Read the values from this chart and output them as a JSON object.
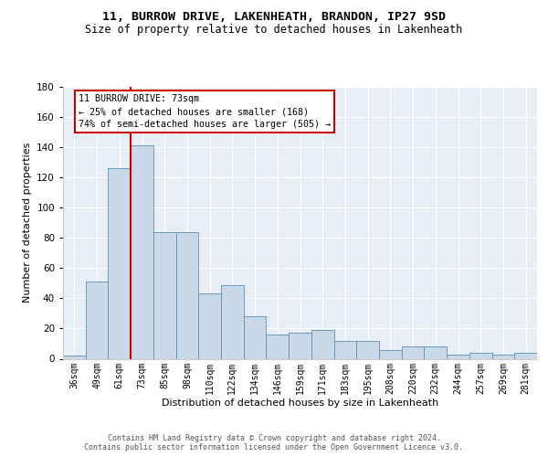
{
  "title1": "11, BURROW DRIVE, LAKENHEATH, BRANDON, IP27 9SD",
  "title2": "Size of property relative to detached houses in Lakenheath",
  "xlabel": "Distribution of detached houses by size in Lakenheath",
  "ylabel": "Number of detached properties",
  "categories": [
    "36sqm",
    "49sqm",
    "61sqm",
    "73sqm",
    "85sqm",
    "98sqm",
    "110sqm",
    "122sqm",
    "134sqm",
    "146sqm",
    "159sqm",
    "171sqm",
    "183sqm",
    "195sqm",
    "208sqm",
    "220sqm",
    "232sqm",
    "244sqm",
    "257sqm",
    "269sqm",
    "281sqm"
  ],
  "values": [
    2,
    51,
    126,
    141,
    84,
    84,
    43,
    49,
    28,
    16,
    17,
    19,
    12,
    12,
    6,
    8,
    8,
    3,
    4,
    3,
    4
  ],
  "bar_color": "#c9d9e8",
  "bar_edge_color": "#5b8db8",
  "vline_color": "#cc0000",
  "vline_index": 3,
  "ylim": [
    0,
    180
  ],
  "yticks": [
    0,
    20,
    40,
    60,
    80,
    100,
    120,
    140,
    160,
    180
  ],
  "annotation_line1": "11 BURROW DRIVE: 73sqm",
  "annotation_line2": "← 25% of detached houses are smaller (168)",
  "annotation_line3": "74% of semi-detached houses are larger (505) →",
  "ann_box_edge": "#cc0000",
  "footer1": "Contains HM Land Registry data © Crown copyright and database right 2024.",
  "footer2": "Contains public sector information licensed under the Open Government Licence v3.0.",
  "bg_color": "#e8eef5"
}
